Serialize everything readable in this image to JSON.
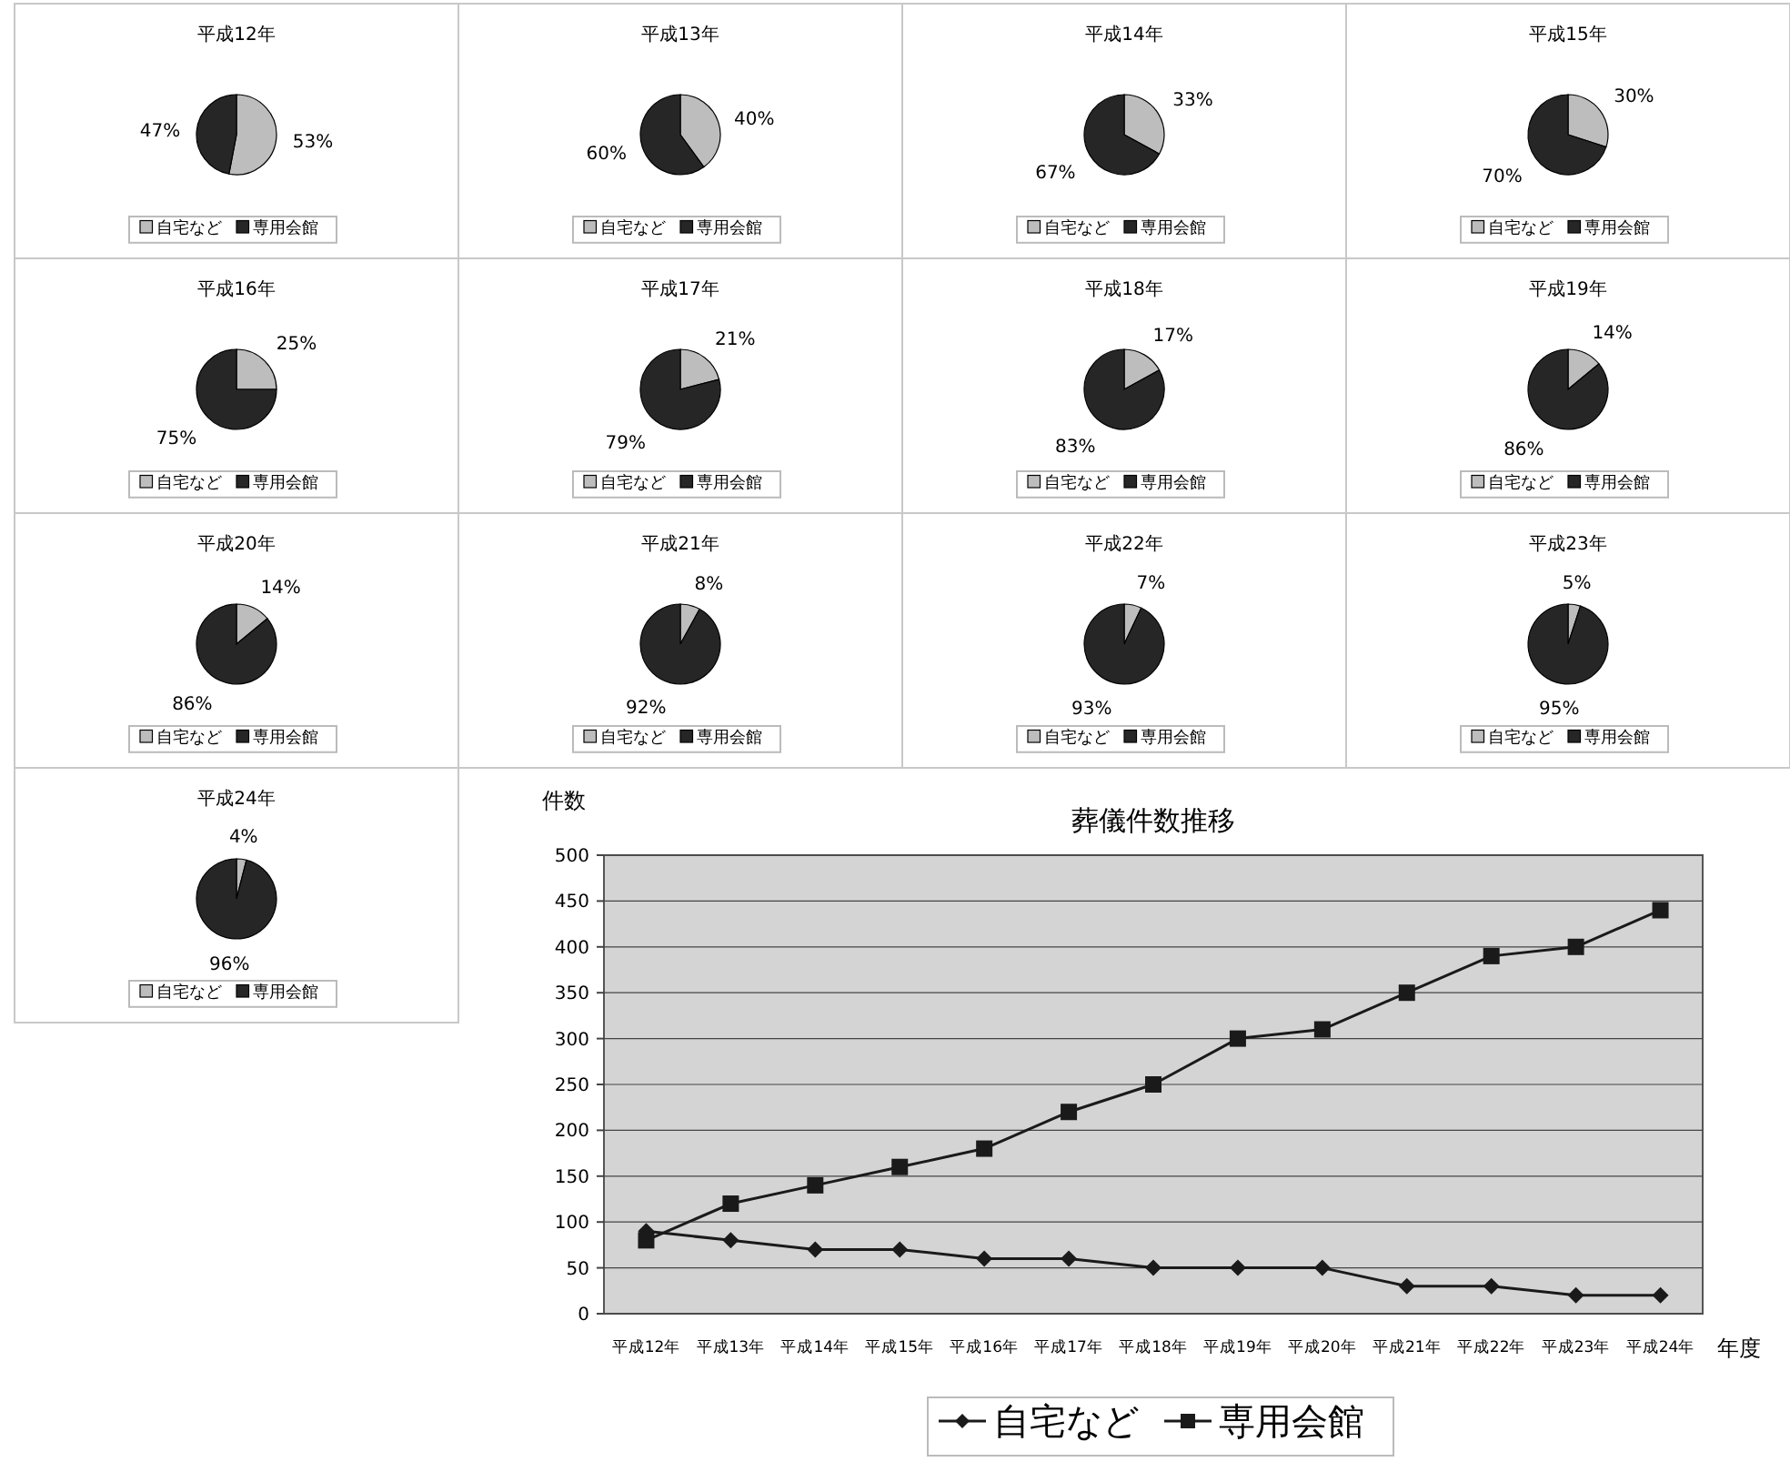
{
  "chart_data": [
    {
      "type": "pie",
      "title": "平成12年",
      "categories": [
        "自宅など",
        "専用会館"
      ],
      "values": [
        53,
        47
      ],
      "value_labels": [
        "53%",
        "47%"
      ],
      "colors": [
        "#bdbdbd",
        "#262626"
      ],
      "legend": "bottom"
    },
    {
      "type": "pie",
      "title": "平成13年",
      "categories": [
        "自宅など",
        "専用会館"
      ],
      "values": [
        40,
        60
      ],
      "value_labels": [
        "40%",
        "60%"
      ],
      "colors": [
        "#bdbdbd",
        "#262626"
      ],
      "legend": "bottom"
    },
    {
      "type": "pie",
      "title": "平成14年",
      "categories": [
        "自宅など",
        "専用会館"
      ],
      "values": [
        33,
        67
      ],
      "value_labels": [
        "33%",
        "67%"
      ],
      "colors": [
        "#bdbdbd",
        "#262626"
      ],
      "legend": "bottom"
    },
    {
      "type": "pie",
      "title": "平成15年",
      "categories": [
        "自宅など",
        "専用会館"
      ],
      "values": [
        30,
        70
      ],
      "value_labels": [
        "30%",
        "70%"
      ],
      "colors": [
        "#bdbdbd",
        "#262626"
      ],
      "legend": "bottom"
    },
    {
      "type": "pie",
      "title": "平成16年",
      "categories": [
        "自宅など",
        "専用会館"
      ],
      "values": [
        25,
        75
      ],
      "value_labels": [
        "25%",
        "75%"
      ],
      "colors": [
        "#bdbdbd",
        "#262626"
      ],
      "legend": "bottom"
    },
    {
      "type": "pie",
      "title": "平成17年",
      "categories": [
        "自宅など",
        "専用会館"
      ],
      "values": [
        21,
        79
      ],
      "value_labels": [
        "21%",
        "79%"
      ],
      "colors": [
        "#bdbdbd",
        "#262626"
      ],
      "legend": "bottom"
    },
    {
      "type": "pie",
      "title": "平成18年",
      "categories": [
        "自宅など",
        "専用会館"
      ],
      "values": [
        17,
        83
      ],
      "value_labels": [
        "17%",
        "83%"
      ],
      "colors": [
        "#bdbdbd",
        "#262626"
      ],
      "legend": "bottom"
    },
    {
      "type": "pie",
      "title": "平成19年",
      "categories": [
        "自宅など",
        "専用会館"
      ],
      "values": [
        14,
        86
      ],
      "value_labels": [
        "14%",
        "86%"
      ],
      "colors": [
        "#bdbdbd",
        "#262626"
      ],
      "legend": "bottom"
    },
    {
      "type": "pie",
      "title": "平成20年",
      "categories": [
        "自宅など",
        "専用会館"
      ],
      "values": [
        14,
        86
      ],
      "value_labels": [
        "14%",
        "86%"
      ],
      "colors": [
        "#bdbdbd",
        "#262626"
      ],
      "legend": "bottom"
    },
    {
      "type": "pie",
      "title": "平成21年",
      "categories": [
        "自宅など",
        "専用会館"
      ],
      "values": [
        8,
        92
      ],
      "value_labels": [
        "8%",
        "92%"
      ],
      "colors": [
        "#bdbdbd",
        "#262626"
      ],
      "legend": "bottom"
    },
    {
      "type": "pie",
      "title": "平成22年",
      "categories": [
        "自宅など",
        "専用会館"
      ],
      "values": [
        7,
        93
      ],
      "value_labels": [
        "7%",
        "93%"
      ],
      "colors": [
        "#bdbdbd",
        "#262626"
      ],
      "legend": "bottom"
    },
    {
      "type": "pie",
      "title": "平成23年",
      "categories": [
        "自宅など",
        "専用会館"
      ],
      "values": [
        5,
        95
      ],
      "value_labels": [
        "5%",
        "95%"
      ],
      "colors": [
        "#bdbdbd",
        "#262626"
      ],
      "legend": "bottom"
    },
    {
      "type": "pie",
      "title": "平成24年",
      "categories": [
        "自宅など",
        "専用会館"
      ],
      "values": [
        4,
        96
      ],
      "value_labels": [
        "4%",
        "96%"
      ],
      "colors": [
        "#bdbdbd",
        "#262626"
      ],
      "legend": "bottom"
    },
    {
      "type": "line",
      "title": "葬儀件数推移",
      "xlabel": "年度",
      "ylabel": "件数",
      "categories": [
        "平成12年",
        "平成13年",
        "平成14年",
        "平成15年",
        "平成16年",
        "平成17年",
        "平成18年",
        "平成19年",
        "平成20年",
        "平成21年",
        "平成22年",
        "平成23年",
        "平成24年"
      ],
      "series": [
        {
          "name": "自宅など",
          "color": "#1a1a1a",
          "marker": "diamond",
          "values": [
            90,
            80,
            70,
            70,
            60,
            60,
            50,
            50,
            50,
            30,
            30,
            20,
            20
          ]
        },
        {
          "name": "専用会館",
          "color": "#1a1a1a",
          "marker": "square",
          "values": [
            80,
            120,
            140,
            160,
            180,
            220,
            250,
            300,
            310,
            350,
            390,
            400,
            440
          ]
        }
      ],
      "ylim": [
        0,
        500
      ],
      "yticks": [
        0,
        50,
        100,
        150,
        200,
        250,
        300,
        350,
        400,
        450,
        500
      ],
      "grid": "y",
      "legend": "bottom"
    }
  ]
}
